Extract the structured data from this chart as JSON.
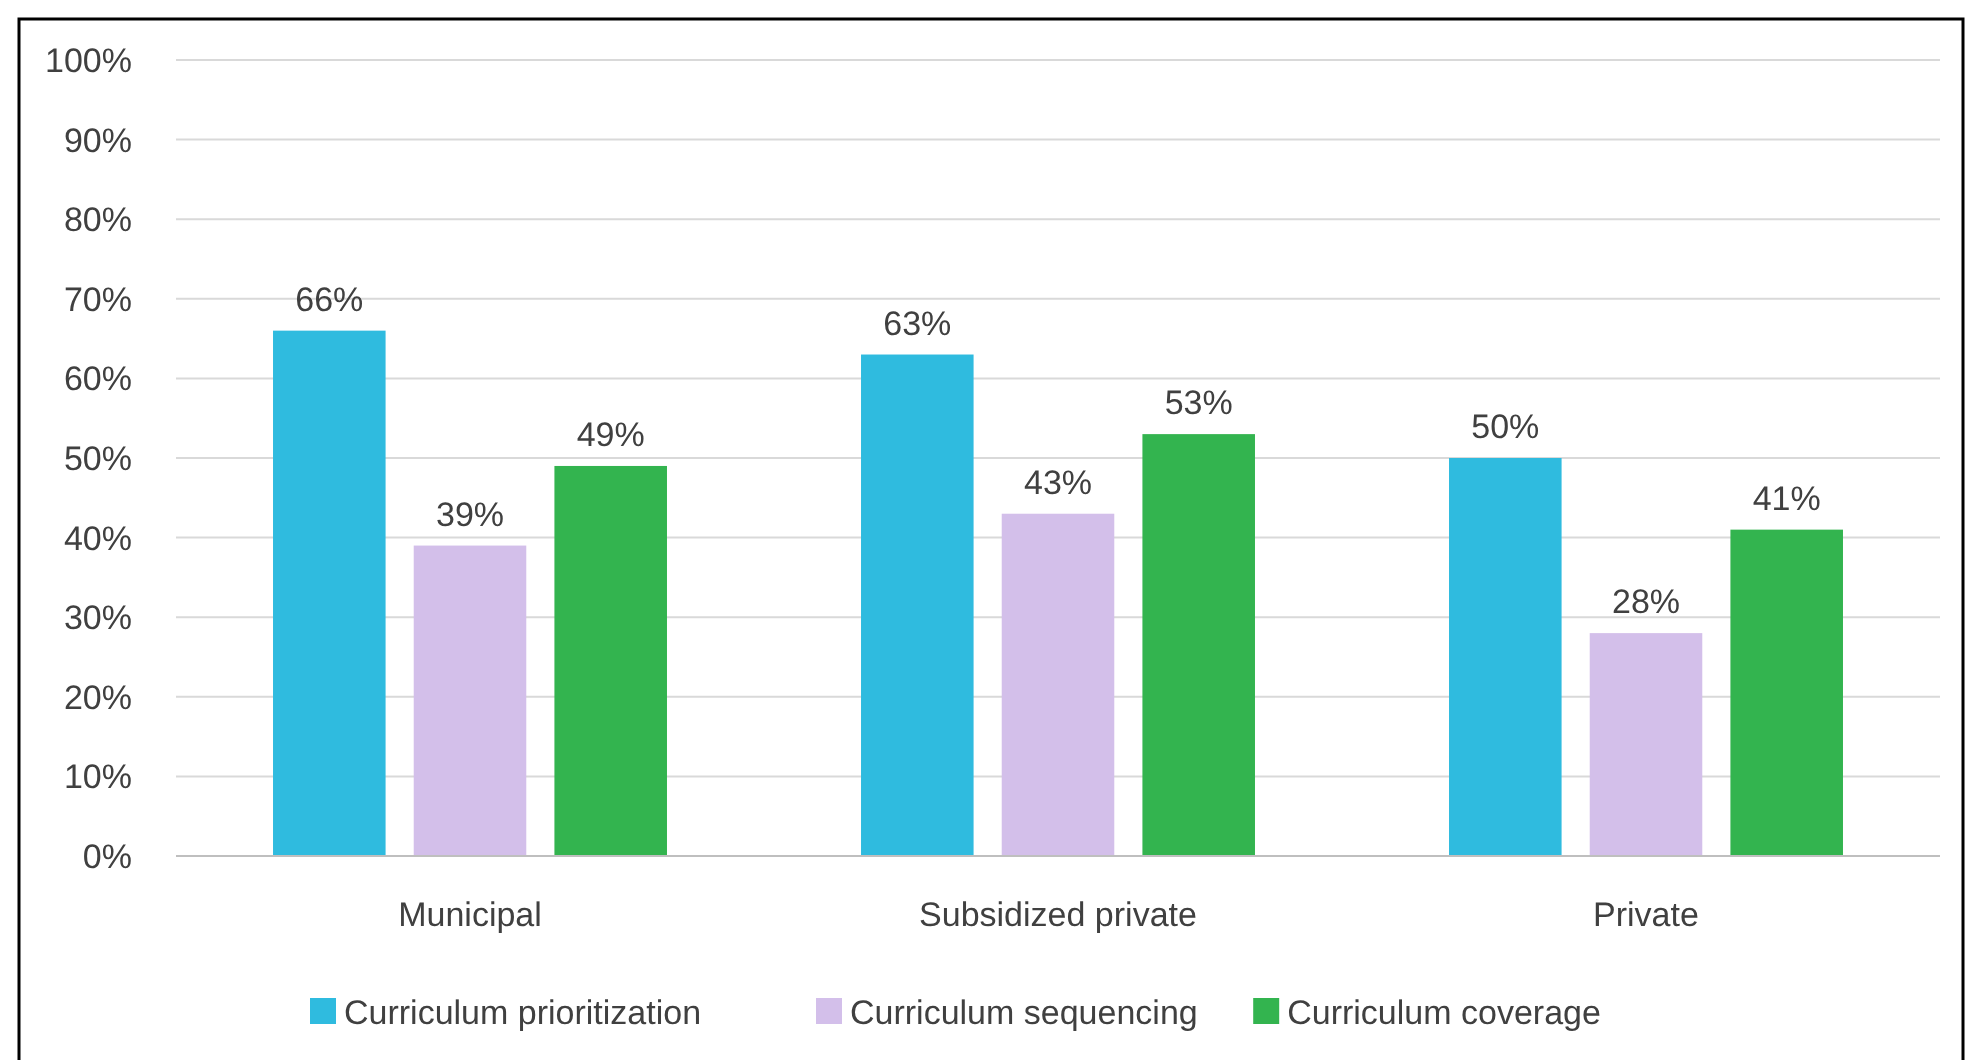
{
  "chart_data": {
    "type": "bar",
    "categories": [
      "Municipal",
      "Subsidized private",
      "Private"
    ],
    "series": [
      {
        "name": "Curriculum prioritization",
        "color": "#2fbbdf",
        "values": [
          66,
          63,
          50
        ],
        "value_labels": [
          "66%",
          "63%",
          "50%"
        ]
      },
      {
        "name": "Curriculum sequencing",
        "color": "#d3bfea",
        "values": [
          39,
          43,
          28
        ],
        "value_labels": [
          "39%",
          "43%",
          "28%"
        ]
      },
      {
        "name": "Curriculum coverage",
        "color": "#33b44f",
        "values": [
          49,
          53,
          41
        ],
        "value_labels": [
          "49%",
          "53%",
          "41%"
        ]
      }
    ],
    "ylim": [
      0,
      100
    ],
    "yticks": [
      {
        "value": 0,
        "label": "0%"
      },
      {
        "value": 10,
        "label": "10%"
      },
      {
        "value": 20,
        "label": "20%"
      },
      {
        "value": 30,
        "label": "30%"
      },
      {
        "value": 40,
        "label": "40%"
      },
      {
        "value": 50,
        "label": "50%"
      },
      {
        "value": 60,
        "label": "60%"
      },
      {
        "value": 70,
        "label": "70%"
      },
      {
        "value": 80,
        "label": "80%"
      },
      {
        "value": 90,
        "label": "90%"
      },
      {
        "value": 100,
        "label": "100%"
      }
    ],
    "grid": "y",
    "legend": "bottom"
  }
}
